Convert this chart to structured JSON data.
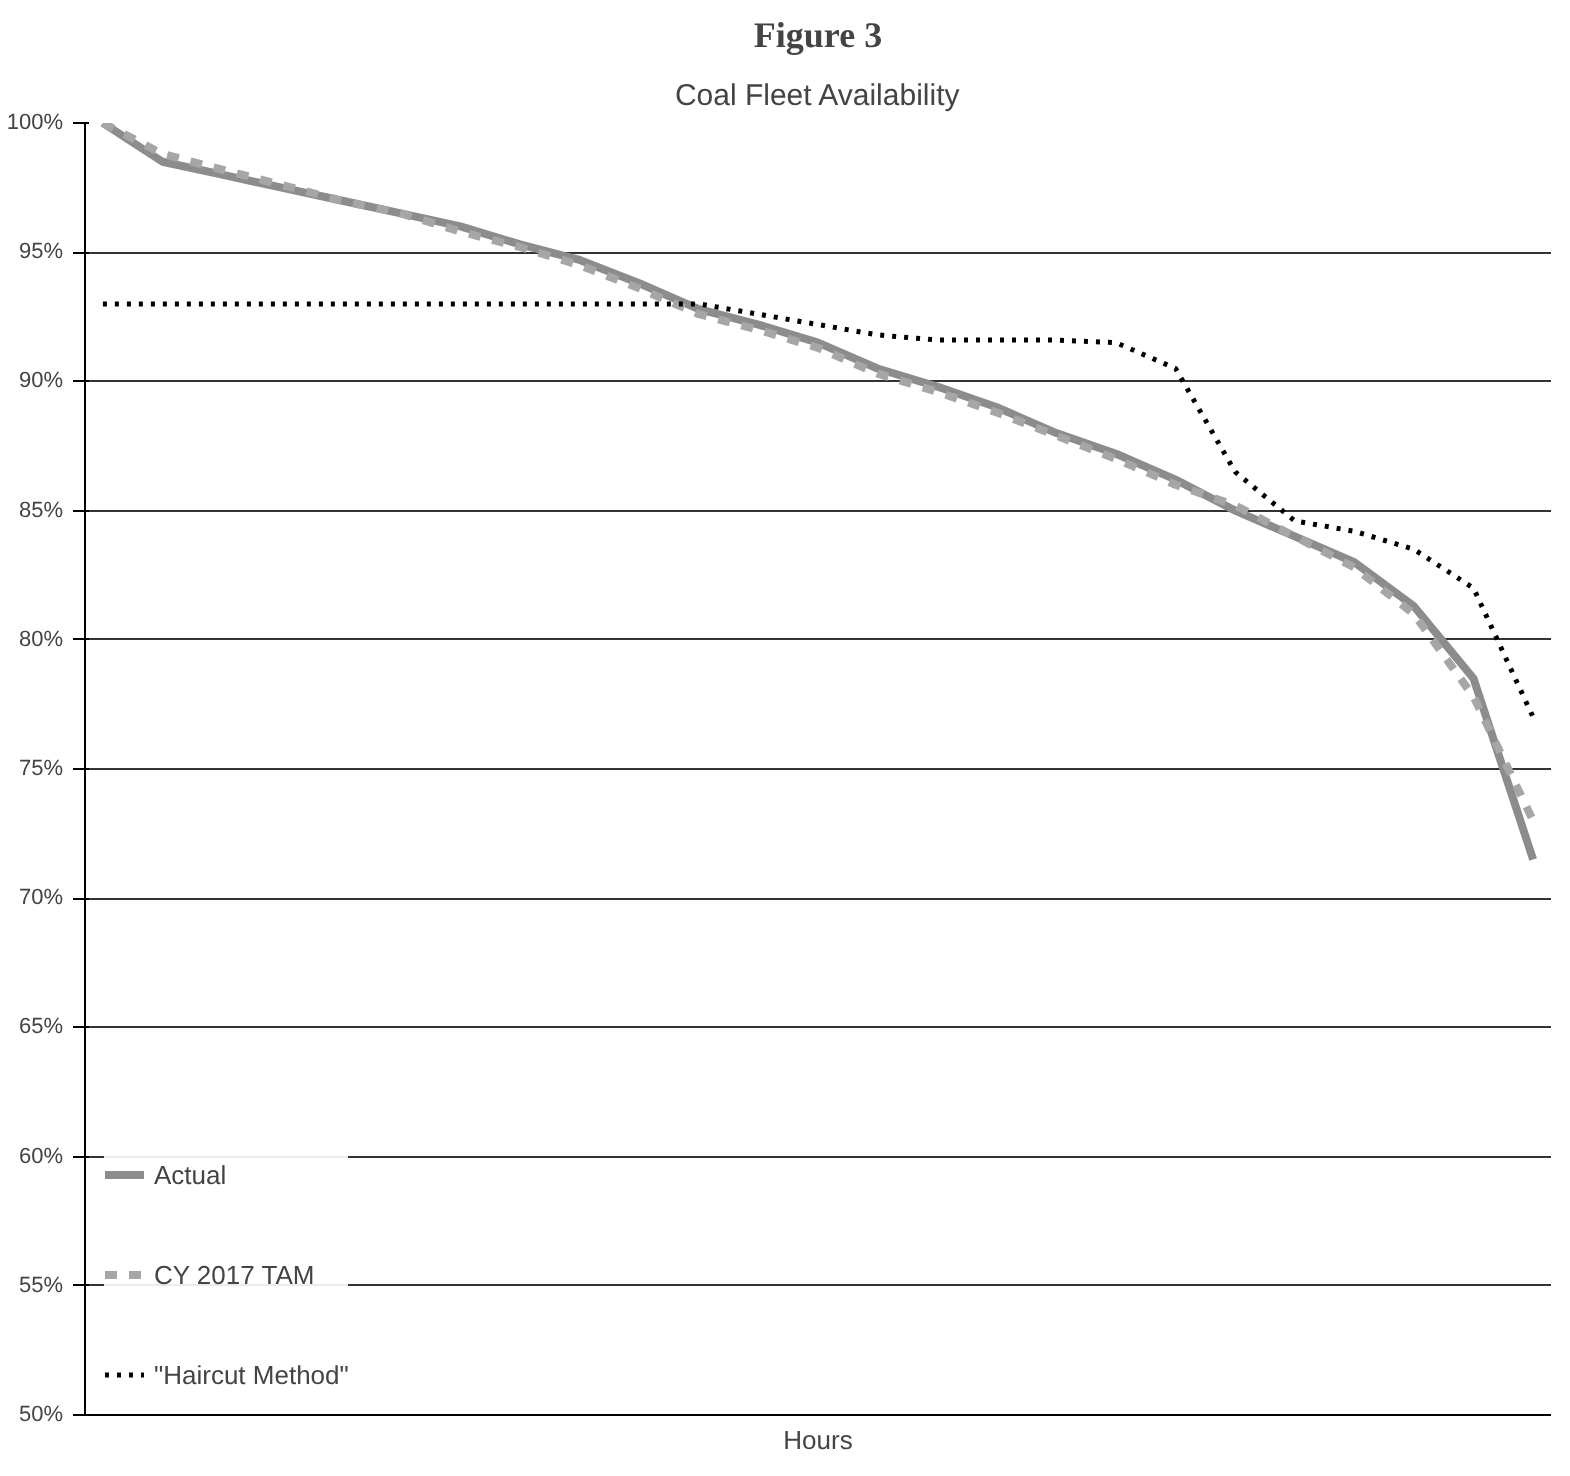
{
  "chart_data": {
    "type": "line",
    "title": "Figure 3",
    "subtitle": "Coal Fleet Availability",
    "xlabel": "Hours",
    "categories": [
      null,
      null,
      null,
      null,
      null,
      null,
      null,
      null,
      null,
      null,
      null,
      null,
      null,
      null,
      null,
      null,
      null,
      null,
      null,
      null,
      null,
      null,
      null,
      null,
      null
    ],
    "series": [
      {
        "name": "Actual",
        "color": "#8c8c8c",
        "line_style": "solid",
        "values": [
          100,
          98.5,
          98,
          97.5,
          97,
          96.5,
          96,
          95.3,
          94.7,
          93.8,
          92.8,
          92.2,
          91.5,
          90.5,
          89.8,
          89,
          88,
          87.2,
          86.2,
          85,
          84,
          83,
          81.3,
          78.5,
          71.5
        ]
      },
      {
        "name": "CY 2017 TAM",
        "color": "#a6a6a6",
        "line_style": "dashed",
        "values": [
          100,
          98.8,
          98.2,
          97.6,
          97,
          96.5,
          95.8,
          95.2,
          94.5,
          93.6,
          92.6,
          92,
          91.3,
          90.3,
          89.6,
          88.8,
          87.9,
          87,
          86,
          85.2,
          84,
          82.8,
          81,
          77.8,
          73
        ]
      },
      {
        "name": "\"Haircut Method\"",
        "color": "#000000",
        "line_style": "dotted",
        "values": [
          93,
          93,
          93,
          93,
          93,
          93,
          93,
          93,
          93,
          93,
          93,
          92.6,
          92.2,
          91.8,
          91.6,
          91.6,
          91.6,
          91.5,
          90.5,
          86.5,
          84.6,
          84.2,
          83.5,
          82,
          77
        ]
      }
    ],
    "ylim": [
      50,
      100
    ],
    "yticks": [
      {
        "value": 50,
        "label": "50%"
      },
      {
        "value": 55,
        "label": "55%"
      },
      {
        "value": 60,
        "label": "60%"
      },
      {
        "value": 65,
        "label": "65%"
      },
      {
        "value": 70,
        "label": "70%"
      },
      {
        "value": 75,
        "label": "75%"
      },
      {
        "value": 80,
        "label": "80%"
      },
      {
        "value": 85,
        "label": "85%"
      },
      {
        "value": 90,
        "label": "90%"
      },
      {
        "value": 95,
        "label": "95%"
      },
      {
        "value": 100,
        "label": "100%"
      }
    ],
    "grid": "y",
    "legend": "bottom left",
    "marker": "none"
  }
}
